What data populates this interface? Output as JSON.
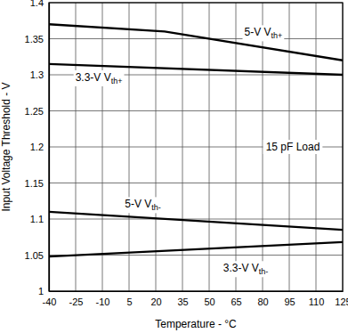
{
  "chart_data": {
    "type": "line",
    "x_label": "Temperature - °C",
    "y_label": "Input Voltage Threshold - V",
    "xlim": [
      -40,
      125
    ],
    "xticks": [
      -40,
      -25,
      -10,
      5,
      20,
      35,
      50,
      65,
      80,
      95,
      110,
      125
    ],
    "ylim": [
      1,
      1.4
    ],
    "yticks": [
      1,
      1.05,
      1.1,
      1.15,
      1.2,
      1.25,
      1.3,
      1.35,
      1.4
    ],
    "grid": true,
    "series": [
      {
        "name": "5-V Vth+",
        "color": "#000000",
        "x": [
          -40,
          25,
          125
        ],
        "values": [
          1.37,
          1.36,
          1.32
        ]
      },
      {
        "name": "3.3-V Vth+",
        "color": "#000000",
        "x": [
          -40,
          125
        ],
        "values": [
          1.315,
          1.3
        ]
      },
      {
        "name": "5-V Vth-",
        "color": "#000000",
        "x": [
          -40,
          125
        ],
        "values": [
          1.11,
          1.085
        ]
      },
      {
        "name": "3.3-V Vth-",
        "color": "#000000",
        "x": [
          -40,
          125
        ],
        "values": [
          1.048,
          1.068
        ]
      }
    ],
    "annotations": [
      {
        "text": "15 pF Load",
        "x": 97,
        "y": 1.2
      }
    ]
  }
}
